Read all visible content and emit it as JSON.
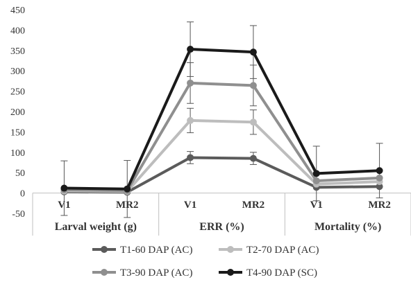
{
  "chart_data": {
    "type": "line",
    "title": "",
    "xlabel": "",
    "ylabel": "",
    "ylim": [
      -50,
      450
    ],
    "yticks": [
      -50,
      0,
      50,
      100,
      150,
      200,
      250,
      300,
      350,
      400,
      450
    ],
    "categories": [
      "V1",
      "MR2",
      "V1",
      "MR2",
      "V1",
      "MR2"
    ],
    "groups": [
      {
        "label": "Larval weight (g)",
        "span": [
          0,
          1
        ]
      },
      {
        "label": "ERR (%)",
        "span": [
          2,
          3
        ]
      },
      {
        "label": "Mortality (%)",
        "span": [
          4,
          5
        ]
      }
    ],
    "legend_position": "bottom",
    "grid": false,
    "series": [
      {
        "name": "T1-60 DAP (AC)",
        "color": "#5b5b5b",
        "segments": [
          [
            3,
            2
          ],
          [
            87,
            85
          ],
          [
            14,
            16
          ]
        ],
        "errors": [
          [
            0,
            0
          ],
          [
            15,
            15
          ],
          [
            0,
            0
          ]
        ]
      },
      {
        "name": "T2-70 DAP (AC)",
        "color": "#bdbdbd",
        "segments": [
          [
            5,
            4
          ],
          [
            178,
            174
          ],
          [
            22,
            28
          ]
        ],
        "errors": [
          [
            0,
            0
          ],
          [
            30,
            30
          ],
          [
            0,
            0
          ]
        ]
      },
      {
        "name": "T3-90 DAP (AC)",
        "color": "#8f8f8f",
        "segments": [
          [
            8,
            6
          ],
          [
            270,
            264
          ],
          [
            30,
            37
          ]
        ],
        "errors": [
          [
            0,
            0
          ],
          [
            50,
            50
          ],
          [
            0,
            0
          ]
        ]
      },
      {
        "name": "T4-90 DAP (SC)",
        "color": "#1a1a1a",
        "segments": [
          [
            12,
            10
          ],
          [
            353,
            346
          ],
          [
            48,
            55
          ]
        ],
        "errors": [
          [
            67,
            70
          ],
          [
            67,
            65
          ],
          [
            67,
            67
          ]
        ]
      }
    ]
  }
}
